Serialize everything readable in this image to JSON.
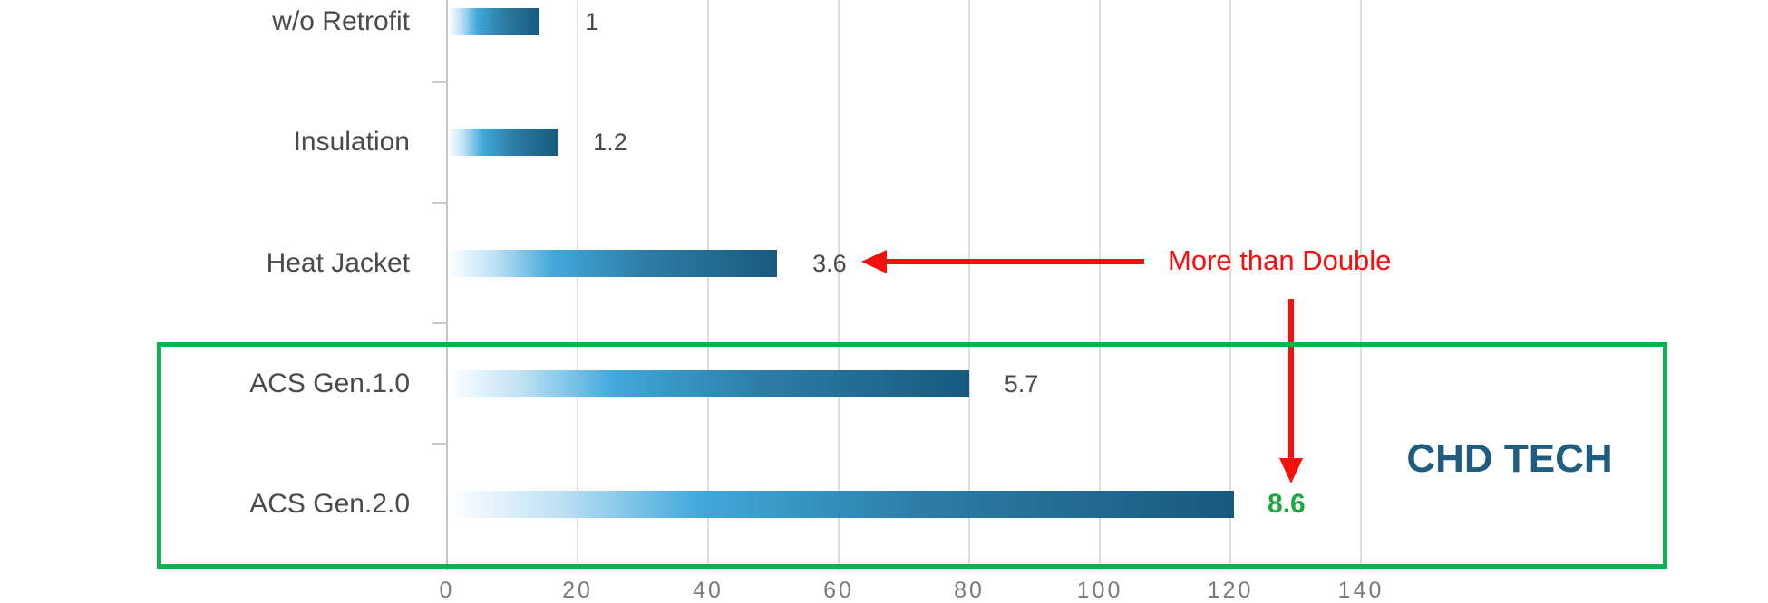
{
  "chart_data": {
    "type": "bar",
    "orientation": "horizontal",
    "title": "",
    "categories": [
      "w/o Retrofit",
      "Insulation",
      "Heat Jacket",
      "ACS Gen.1.0",
      "ACS Gen.2.0"
    ],
    "values": [
      1,
      1.2,
      3.6,
      5.7,
      8.6
    ],
    "value_labels": [
      "1",
      "1.2",
      "3.6",
      "5.7",
      "8.6"
    ],
    "highlighted_category_index": 4,
    "axis_scale_factor": 14,
    "x_axis": {
      "ticks": [
        0,
        20,
        40,
        60,
        80,
        100,
        120,
        140
      ],
      "min": 0,
      "max": 148,
      "gridlines": true
    },
    "legend": "none",
    "bar_gradient": {
      "stops": [
        "#ffffff",
        "#bfe2f4",
        "#41a8db",
        "#2c7da6",
        "#175a7e"
      ],
      "positions": [
        0,
        14,
        32,
        60,
        100
      ]
    }
  },
  "annotations": {
    "more_than_double": {
      "text": "More than Double"
    },
    "chd_tech": {
      "text": "CHD TECH"
    },
    "highlighted_rows": [
      "ACS Gen.1.0",
      "ACS Gen.2.0"
    ]
  },
  "colors": {
    "annotation_red": "#f90d0d",
    "highlight_box_green": "#0fb050",
    "highlight_value_green": "#1fa83d",
    "chd_tech_blue": "#1e5c80",
    "label_gray": "#4a4a4a",
    "axis_tick_gray": "#7a7a7a",
    "gridline_gray": "#dcdcdc"
  }
}
